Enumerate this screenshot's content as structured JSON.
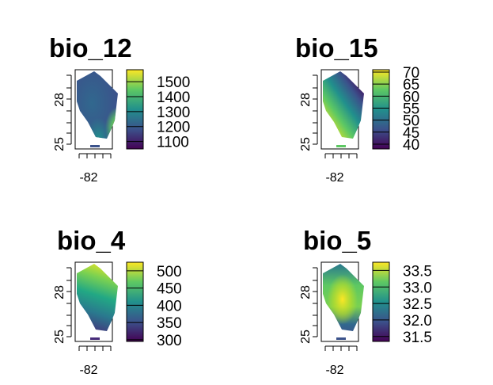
{
  "chart_data": [
    {
      "type": "heatmap",
      "title": "bio_12",
      "x_ticks": [
        "-82"
      ],
      "y_ticks": [
        "25",
        "28"
      ],
      "legend": {
        "labels": [
          "1100",
          "1200",
          "1300",
          "1400",
          "1500"
        ],
        "values": [
          1100,
          1200,
          1300,
          1400,
          1500
        ],
        "range": [
          1050,
          1580
        ],
        "placement": "right"
      },
      "pattern": "low interior, higher on south-east coast",
      "colors": [
        "#440154",
        "#3b528b",
        "#21908c",
        "#5dc863",
        "#fde725"
      ]
    },
    {
      "type": "heatmap",
      "title": "bio_15",
      "x_ticks": [
        "-82"
      ],
      "y_ticks": [
        "25",
        "28"
      ],
      "legend": {
        "labels": [
          "40",
          "45",
          "50",
          "55",
          "60",
          "65",
          "70"
        ],
        "values": [
          40,
          45,
          50,
          55,
          60,
          65,
          70
        ],
        "range": [
          38,
          71
        ],
        "placement": "right"
      },
      "pattern": "high in south-west, low in north-east",
      "colors": [
        "#440154",
        "#3b528b",
        "#21908c",
        "#5dc863",
        "#fde725"
      ]
    },
    {
      "type": "heatmap",
      "title": "bio_4",
      "x_ticks": [
        "-82"
      ],
      "y_ticks": [
        "25",
        "28"
      ],
      "legend": {
        "labels": [
          "300",
          "350",
          "400",
          "450",
          "500"
        ],
        "values": [
          300,
          350,
          400,
          450,
          500
        ],
        "range": [
          295,
          525
        ],
        "placement": "right"
      },
      "pattern": "high in north, decreasing to south",
      "colors": [
        "#440154",
        "#3b528b",
        "#21908c",
        "#5dc863",
        "#fde725"
      ]
    },
    {
      "type": "heatmap",
      "title": "bio_5",
      "x_ticks": [
        "-82"
      ],
      "y_ticks": [
        "25",
        "28"
      ],
      "legend": {
        "labels": [
          "31.5",
          "32.0",
          "32.5",
          "33.0",
          "33.5"
        ],
        "values": [
          31.5,
          32.0,
          32.5,
          33.0,
          33.5
        ],
        "range": [
          31.35,
          33.75
        ],
        "placement": "right"
      },
      "pattern": "warm interior, cooler north and south",
      "colors": [
        "#440154",
        "#3b528b",
        "#21908c",
        "#5dc863",
        "#fde725"
      ]
    }
  ]
}
